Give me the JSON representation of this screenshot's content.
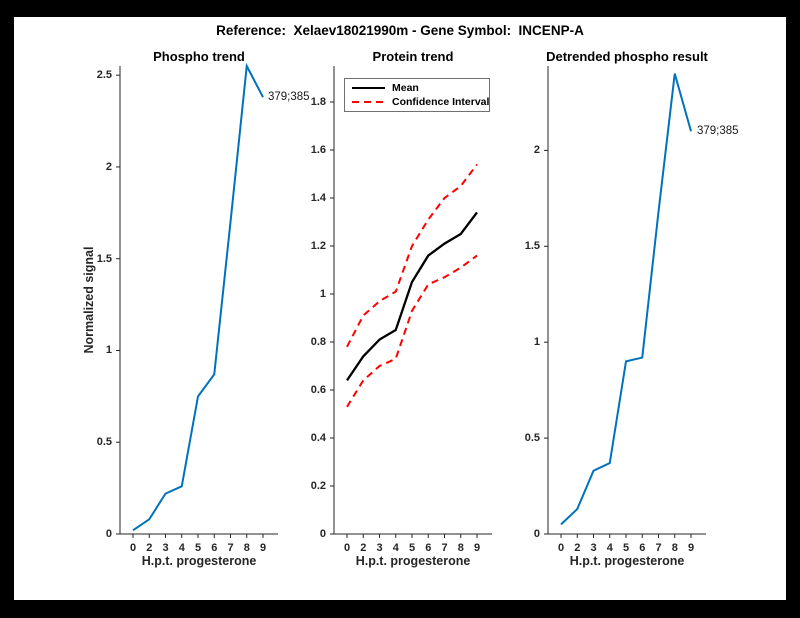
{
  "figure": {
    "title": "Reference:  Xelaev18021990m - Gene Symbol:  INCENP-A",
    "frame_color": "#000000",
    "background_color": "#ffffff",
    "axis_color": "#262626",
    "accent_blue": "#0072BD",
    "accent_red": "#ff0000"
  },
  "chart_data": [
    {
      "type": "line",
      "title": "Phospho trend",
      "xlabel": "H.p.t. progesterone",
      "ylabel": "Normalized signal",
      "categories": [
        "0",
        "2",
        "3",
        "4",
        "5",
        "6",
        "7",
        "8",
        "9"
      ],
      "ytick_labels": [
        "0",
        "0.5",
        "1",
        "1.5",
        "2",
        "2.5"
      ],
      "ytick_values": [
        0,
        0.5,
        1,
        1.5,
        2,
        2.5
      ],
      "ylim": [
        0,
        2.55
      ],
      "grid": false,
      "series": [
        {
          "name": "phospho-signal",
          "color": "#0072BD",
          "style": "solid",
          "width": 2,
          "values": [
            0.02,
            0.08,
            0.22,
            0.26,
            0.75,
            0.87,
            1.7,
            2.55,
            2.38
          ]
        }
      ],
      "annotation": {
        "text": "379;385",
        "x_index": 8,
        "value": 2.38
      }
    },
    {
      "type": "line",
      "title": "Protein trend",
      "xlabel": "H.p.t. progesterone",
      "ylabel": "",
      "categories": [
        "0",
        "2",
        "3",
        "4",
        "5",
        "6",
        "7",
        "8",
        "9"
      ],
      "ytick_labels": [
        "0",
        "0.2",
        "0.4",
        "0.6",
        "0.8",
        "1",
        "1.2",
        "1.4",
        "1.6",
        "1.8"
      ],
      "ytick_values": [
        0,
        0.2,
        0.4,
        0.6,
        0.8,
        1.0,
        1.2,
        1.4,
        1.6,
        1.8
      ],
      "ylim": [
        0,
        1.95
      ],
      "grid": false,
      "legend": {
        "position": "northwest",
        "entries": [
          {
            "label": "Mean",
            "color": "#000000",
            "style": "solid"
          },
          {
            "label": "Confidence Interval",
            "color": "#ff0000",
            "style": "dashed"
          }
        ]
      },
      "series": [
        {
          "name": "mean",
          "color": "#000000",
          "style": "solid",
          "width": 2.3,
          "values": [
            0.64,
            0.74,
            0.81,
            0.85,
            1.05,
            1.16,
            1.21,
            1.25,
            1.34
          ]
        },
        {
          "name": "ci-upper",
          "color": "#ff0000",
          "style": "dashed",
          "width": 2,
          "values": [
            0.78,
            0.91,
            0.97,
            1.01,
            1.2,
            1.31,
            1.4,
            1.45,
            1.54
          ]
        },
        {
          "name": "ci-lower",
          "color": "#ff0000",
          "style": "dashed",
          "width": 2,
          "values": [
            0.53,
            0.64,
            0.7,
            0.73,
            0.93,
            1.04,
            1.07,
            1.11,
            1.16
          ]
        }
      ]
    },
    {
      "type": "line",
      "title": "Detrended phospho result",
      "xlabel": "H.p.t. progesterone",
      "ylabel": "",
      "categories": [
        "0",
        "2",
        "3",
        "4",
        "5",
        "6",
        "7",
        "8",
        "9"
      ],
      "ytick_labels": [
        "0",
        "0.5",
        "1",
        "1.5",
        "2"
      ],
      "ytick_values": [
        0,
        0.5,
        1,
        1.5,
        2
      ],
      "ylim": [
        0,
        2.44
      ],
      "grid": false,
      "series": [
        {
          "name": "detrended-phospho-signal",
          "color": "#0072BD",
          "style": "solid",
          "width": 2,
          "values": [
            0.05,
            0.13,
            0.33,
            0.37,
            0.9,
            0.92,
            1.68,
            2.4,
            2.1
          ]
        }
      ],
      "annotation": {
        "text": "379;385",
        "x_index": 8,
        "value": 2.1
      }
    }
  ]
}
